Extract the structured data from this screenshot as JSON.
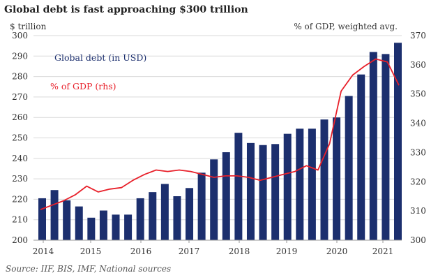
{
  "title": "Global debt is fast approaching $300 trillion",
  "source": "Source: IIF, BIS, IMF, National sources",
  "colors": {
    "bar": "#1c2f6e",
    "line": "#e8202a",
    "grid": "#d9d9d9"
  },
  "chart_data": {
    "type": "bar",
    "y_left_label": "$ trillion",
    "y_right_label": "% of GDP, weighted avg.",
    "ylim_left": [
      200,
      300
    ],
    "ylim_right": [
      300,
      370
    ],
    "y_left_ticks": [
      200,
      210,
      220,
      230,
      240,
      250,
      260,
      270,
      280,
      290,
      300
    ],
    "y_right_ticks": [
      300,
      310,
      320,
      330,
      340,
      350,
      360,
      370
    ],
    "x_ticks": [
      "2014",
      "2015",
      "2016",
      "2017",
      "2018",
      "2019",
      "2020",
      "2021"
    ],
    "grid": "horizontal",
    "series": [
      {
        "name": "Global debt (in USD)",
        "type": "bar",
        "axis": "left",
        "values": [
          220.5,
          224.5,
          219.5,
          216.5,
          211.0,
          214.5,
          212.5,
          212.5,
          220.5,
          223.5,
          227.5,
          221.5,
          225.5,
          233.0,
          239.5,
          243.0,
          252.5,
          247.5,
          246.5,
          247.0,
          252.0,
          254.5,
          254.5,
          259.0,
          260.0,
          270.5,
          281.0,
          292.0,
          291.0,
          296.5
        ]
      },
      {
        "name": "% of GDP (rhs)",
        "type": "line",
        "axis": "right",
        "values": [
          310.5,
          312.0,
          313.5,
          315.5,
          318.5,
          316.5,
          317.5,
          318.0,
          320.5,
          322.5,
          324.0,
          323.5,
          324.0,
          323.5,
          322.5,
          321.5,
          322.0,
          322.0,
          321.5,
          320.5,
          321.5,
          322.5,
          323.5,
          325.5,
          324.0,
          333.0,
          351.0,
          356.5,
          359.5,
          362.0,
          361.0,
          353.0
        ]
      }
    ]
  }
}
